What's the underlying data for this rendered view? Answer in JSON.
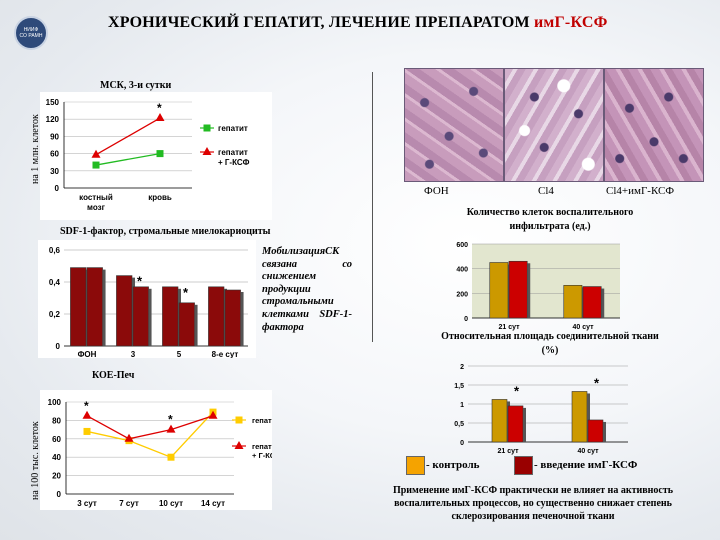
{
  "header": {
    "title_main": "ХРОНИЧЕСКИЙ ГЕПАТИТ, ЛЕЧЕНИЕ ПРЕПАРАТОМ ",
    "title_drug": "имГ-КСФ",
    "logo_lines": [
      "НИИФ",
      "СО РАМН"
    ]
  },
  "left": {
    "msk_title": "МСК, 3-и сутки",
    "msk_ylabel": "на 1 млн. клеток",
    "sdf_title": "SDF-1-фактор, стромальные миелокариоциты",
    "koe_title": "КОЕ-Печ",
    "koe_ylabel": "на 100 тыс. клеток",
    "mobilization_text": "МобилизацияСК связана со снижением продукции стромальными клетками SDF-1-фактора"
  },
  "photos": {
    "labels": [
      "ФОН",
      "Cl4",
      "Cl4+имГ-КСФ"
    ]
  },
  "right": {
    "infiltrate_title": "Количество клеток воспалительного инфильтрата (ед.)",
    "connective_title": "Относительная площадь соединительной ткани (%)"
  },
  "legend": {
    "control_label": "- контроль",
    "treated_label": "- введение имГ-КСФ",
    "control_color": "#f5a300",
    "treated_color": "#990000"
  },
  "conclusion": "Применение имГ-КСФ практически не влияет на активность воспалительных процессов, но существенно снижает степень склерозирования печеночной ткани",
  "chart_data": [
    {
      "id": "msk",
      "type": "line",
      "categories": [
        "костный мозг",
        "кровь"
      ],
      "ylim": [
        0,
        150
      ],
      "yticks": [
        0,
        30,
        60,
        90,
        120,
        150
      ],
      "series": [
        {
          "name": "гепатит",
          "values": [
            40,
            60
          ],
          "color": "#22bb22",
          "marker": "square"
        },
        {
          "name": "гепатит + Г-КСФ",
          "values": [
            58,
            122
          ],
          "color": "#dd0000",
          "marker": "triangle"
        }
      ],
      "annotations": [
        {
          "text": "*",
          "category": 1,
          "value": 122
        }
      ],
      "legend": "right"
    },
    {
      "id": "sdf",
      "type": "bar",
      "categories": [
        "ФОН",
        "3",
        "5",
        "8-е сут"
      ],
      "ylim": [
        0,
        0.6
      ],
      "yticks": [
        "0",
        "0,2",
        "0,4",
        "0,6"
      ],
      "series": [
        {
          "values": [
            0.49,
            0.44,
            0.37,
            0.37
          ],
          "color": "#8b0a0a"
        },
        {
          "values": [
            0.49,
            0.37,
            0.27,
            0.35
          ],
          "color": "#8b0a0a"
        }
      ],
      "annotations": [
        {
          "text": "*",
          "category": 1
        },
        {
          "text": "*",
          "category": 2
        }
      ]
    },
    {
      "id": "koe",
      "type": "line",
      "categories": [
        "3 сут",
        "7 сут",
        "10 сут",
        "14 сут"
      ],
      "ylim": [
        0,
        100
      ],
      "yticks": [
        0,
        20,
        40,
        60,
        80,
        100
      ],
      "series": [
        {
          "name": "гепатит",
          "values": [
            68,
            58,
            40,
            89
          ],
          "color": "#ffcc00",
          "marker": "square"
        },
        {
          "name": "гепатит + Г-КСФ",
          "values": [
            85,
            60,
            70,
            85
          ],
          "color": "#dd0000",
          "marker": "triangle"
        }
      ],
      "annotations": [
        {
          "text": "*",
          "category": 0
        },
        {
          "text": "*",
          "category": 2
        }
      ],
      "legend": "right"
    },
    {
      "id": "infiltrate",
      "type": "bar",
      "categories": [
        "21 сут",
        "40 сут"
      ],
      "ylim": [
        0,
        600
      ],
      "yticks": [
        0,
        200,
        400,
        600
      ],
      "series": [
        {
          "name": "контроль",
          "values": [
            450,
            265
          ],
          "color": "#cc9900"
        },
        {
          "name": "введение имГ-КСФ",
          "values": [
            460,
            255
          ],
          "color": "#cc0000"
        }
      ]
    },
    {
      "id": "connective",
      "type": "bar",
      "categories": [
        "21 сут",
        "40 сут"
      ],
      "ylim": [
        0,
        2
      ],
      "yticks": [
        "0",
        "0,5",
        "1",
        "1,5",
        "2"
      ],
      "series": [
        {
          "name": "контроль",
          "values": [
            1.12,
            1.33
          ],
          "color": "#cc9900"
        },
        {
          "name": "введение имГ-КСФ",
          "values": [
            0.95,
            0.58
          ],
          "color": "#cc0000"
        }
      ],
      "annotations": [
        {
          "text": "*",
          "category": 0
        },
        {
          "text": "*",
          "category": 1
        }
      ]
    }
  ]
}
